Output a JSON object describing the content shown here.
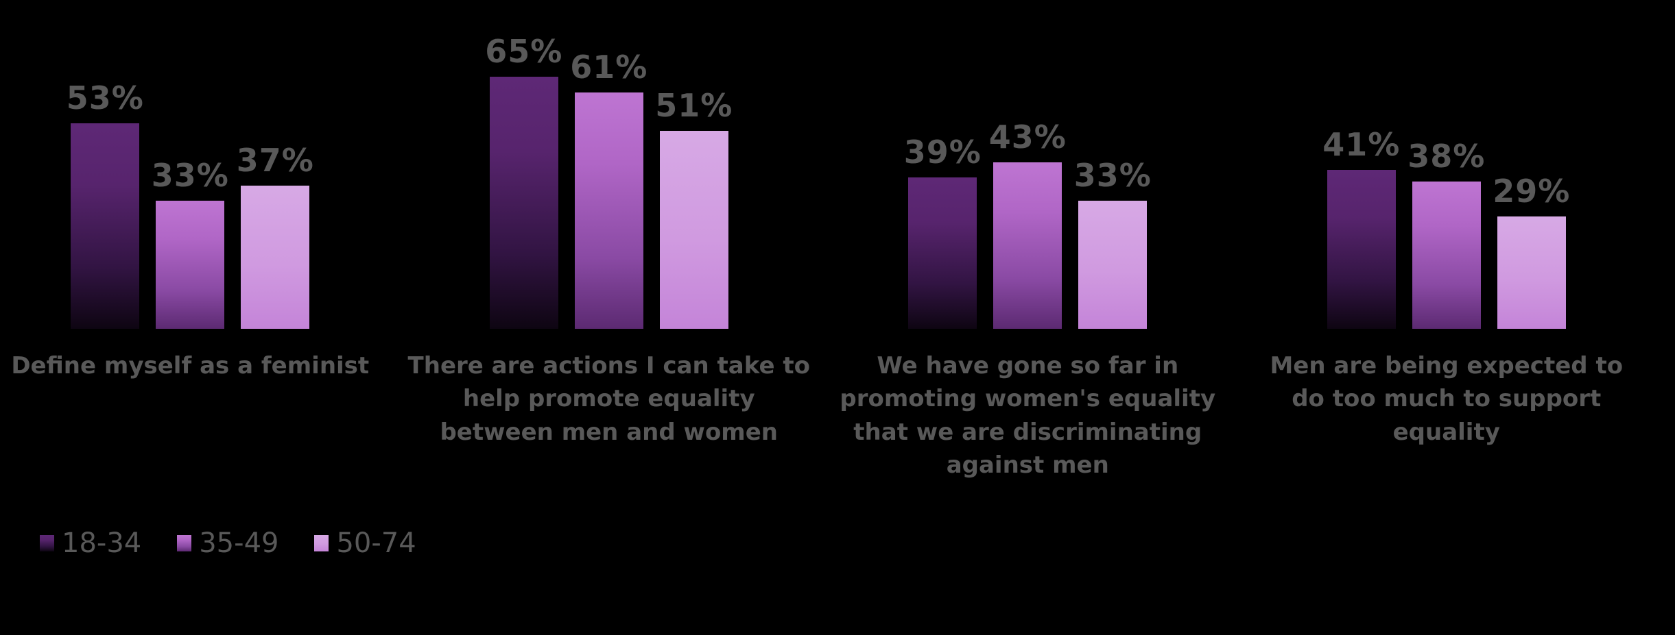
{
  "background_color": "#000000",
  "text_color": "#595959",
  "chart_data": {
    "type": "bar",
    "orientation": "vertical-grouped",
    "title": "",
    "axes_visible": false,
    "gridlines": false,
    "data_labels": true,
    "value_suffix": "%",
    "legend_position": "bottom-left",
    "ylim": [
      0,
      70
    ],
    "categories": [
      "Define myself as a feminist",
      "There are actions I can take to help promote equality between men and women",
      "We have gone so far in promoting women's equality that we are discriminating against men",
      "Men are being expected to do too much to support equality"
    ],
    "series": [
      {
        "name": "18-34",
        "values": [
          53,
          65,
          39,
          41
        ],
        "gradient": [
          "#5e2876",
          "#57246d",
          "#321443",
          "#0e0512"
        ]
      },
      {
        "name": "35-49",
        "values": [
          33,
          61,
          43,
          38
        ],
        "gradient": [
          "#be75d2",
          "#b066c6",
          "#8a4aa4",
          "#5c2a72"
        ]
      },
      {
        "name": "50-74",
        "values": [
          37,
          51,
          33,
          29
        ],
        "gradient": [
          "#d7a9e5",
          "#d09ae0",
          "#c484d8"
        ]
      }
    ]
  },
  "legend": {
    "items": [
      "18-34",
      "35-49",
      "50-74"
    ]
  }
}
